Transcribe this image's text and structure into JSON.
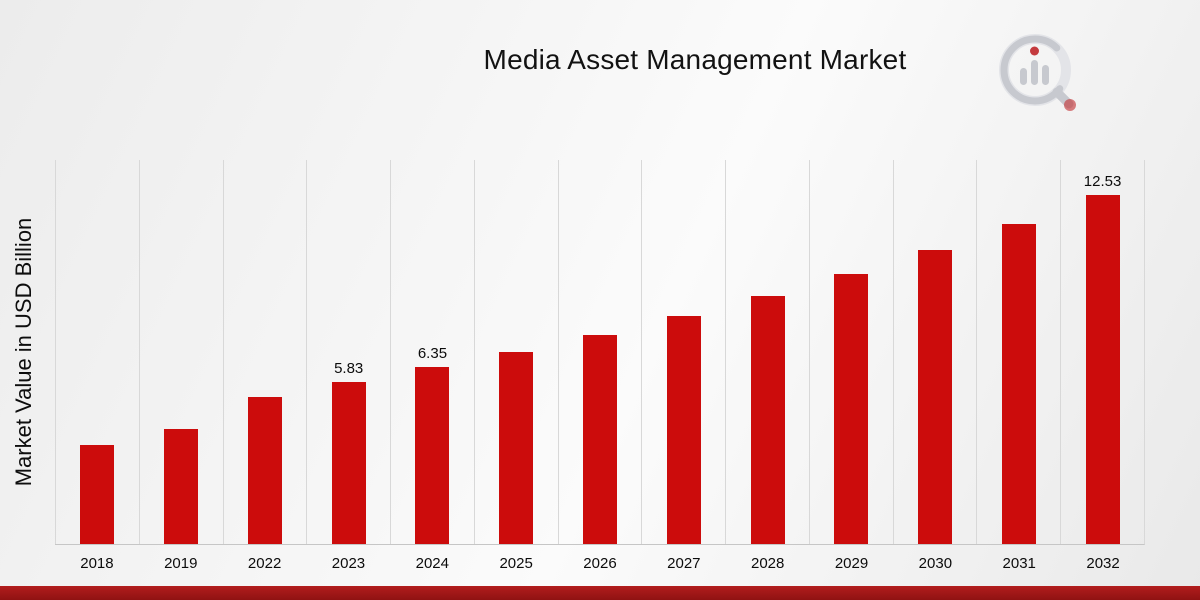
{
  "title": "Media Asset Management Market",
  "chart_data": {
    "type": "bar",
    "title": "Media Asset Management Market",
    "xlabel": "",
    "ylabel": "Market Value in USD Billion",
    "ylim": [
      0,
      13.8
    ],
    "grid": "vertical-only",
    "legend": "none",
    "bar_color": "#CC0C0C",
    "categories": [
      "2018",
      "2019",
      "2022",
      "2023",
      "2024",
      "2025",
      "2026",
      "2027",
      "2028",
      "2029",
      "2030",
      "2031",
      "2032"
    ],
    "values": [
      3.55,
      4.12,
      5.3,
      5.83,
      6.35,
      6.91,
      7.52,
      8.19,
      8.92,
      9.71,
      10.57,
      11.51,
      12.53
    ],
    "data_labels": [
      "",
      "",
      "",
      "5.83",
      "6.35",
      "",
      "",
      "",
      "",
      "",
      "",
      "",
      "12.53"
    ]
  },
  "icons": {
    "logo": "bar-chart-magnifier-logo"
  },
  "colors": {
    "bar": "#CC0C0C",
    "footer_strip": "#A31818",
    "gridline": "#D8D8D8",
    "background": "#F0F0F0",
    "logo_gray": "#C7C9CF",
    "logo_red": "#C43A3E"
  }
}
